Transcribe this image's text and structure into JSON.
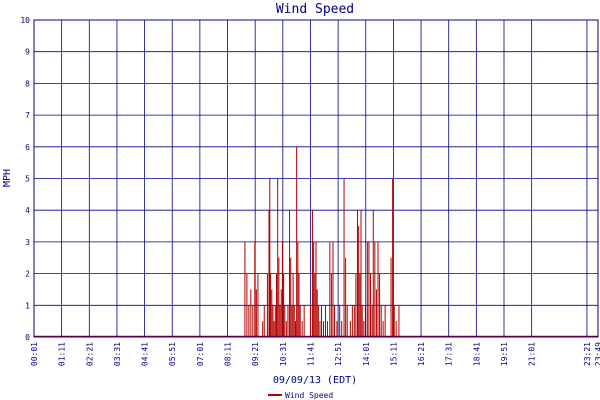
{
  "chart_data": {
    "type": "bar",
    "title": "Wind Speed",
    "xlabel": "09/09/13 (EDT)",
    "ylabel": "MPH",
    "ylim": [
      0,
      10
    ],
    "yticks": [
      "0",
      "1",
      "2",
      "3",
      "4",
      "5",
      "6",
      "7",
      "8",
      "9",
      "10"
    ],
    "xticks": [
      "00:01",
      "01:11",
      "02:21",
      "03:31",
      "04:41",
      "05:51",
      "07:01",
      "08:11",
      "09:21",
      "10:31",
      "11:41",
      "12:51",
      "14:01",
      "15:11",
      "16:21",
      "17:31",
      "18:41",
      "19:51",
      "21:01",
      "23:21",
      "23:49"
    ],
    "grid": true,
    "legend": "bottom-center",
    "series": [
      {
        "name": "Wind Speed",
        "color": "#b00000",
        "points": [
          [
            "08:55",
            3
          ],
          [
            "09:00",
            2
          ],
          [
            "09:05",
            1
          ],
          [
            "09:10",
            1.5
          ],
          [
            "09:15",
            1
          ],
          [
            "09:20",
            3
          ],
          [
            "09:24",
            1.5
          ],
          [
            "09:28",
            2
          ],
          [
            "09:40",
            0.5
          ],
          [
            "09:44",
            1
          ],
          [
            "09:52",
            2
          ],
          [
            "09:56",
            4
          ],
          [
            "09:58",
            5
          ],
          [
            "10:00",
            2
          ],
          [
            "10:03",
            1.5
          ],
          [
            "10:06",
            1
          ],
          [
            "10:09",
            0.5
          ],
          [
            "10:12",
            1
          ],
          [
            "10:15",
            2
          ],
          [
            "10:18",
            5
          ],
          [
            "10:21",
            2.5
          ],
          [
            "10:24",
            1
          ],
          [
            "10:27",
            1.5
          ],
          [
            "10:30",
            3
          ],
          [
            "10:33",
            2
          ],
          [
            "10:36",
            1
          ],
          [
            "10:40",
            0.5
          ],
          [
            "10:44",
            1
          ],
          [
            "10:48",
            4
          ],
          [
            "10:51",
            2.5
          ],
          [
            "10:54",
            1
          ],
          [
            "10:57",
            2
          ],
          [
            "11:00",
            1
          ],
          [
            "11:03",
            0.5
          ],
          [
            "11:06",
            6
          ],
          [
            "11:09",
            3
          ],
          [
            "11:12",
            2
          ],
          [
            "11:15",
            1
          ],
          [
            "11:20",
            0.5
          ],
          [
            "11:25",
            1
          ],
          [
            "11:41",
            1
          ],
          [
            "11:46",
            4
          ],
          [
            "11:49",
            3
          ],
          [
            "11:52",
            2
          ],
          [
            "11:55",
            3
          ],
          [
            "11:58",
            1.5
          ],
          [
            "12:01",
            1
          ],
          [
            "12:05",
            0.5
          ],
          [
            "12:09",
            1
          ],
          [
            "12:14",
            0.5
          ],
          [
            "12:19",
            1
          ],
          [
            "12:24",
            0.5
          ],
          [
            "12:30",
            3
          ],
          [
            "12:34",
            2
          ],
          [
            "12:38",
            3
          ],
          [
            "12:42",
            1
          ],
          [
            "12:48",
            0.5
          ],
          [
            "12:55",
            1
          ],
          [
            "13:00",
            0.5
          ],
          [
            "13:06",
            5
          ],
          [
            "13:10",
            2.5
          ],
          [
            "13:14",
            1
          ],
          [
            "13:22",
            0.5
          ],
          [
            "13:27",
            1
          ],
          [
            "13:32",
            1
          ],
          [
            "13:36",
            2
          ],
          [
            "13:40",
            4
          ],
          [
            "13:43",
            3.5
          ],
          [
            "13:46",
            2
          ],
          [
            "13:49",
            4
          ],
          [
            "13:52",
            1
          ],
          [
            "13:56",
            0.5
          ],
          [
            "14:00",
            1
          ],
          [
            "14:05",
            3
          ],
          [
            "14:09",
            3
          ],
          [
            "14:13",
            2
          ],
          [
            "14:17",
            1
          ],
          [
            "14:20",
            4
          ],
          [
            "14:24",
            3
          ],
          [
            "14:28",
            1.5
          ],
          [
            "14:32",
            3
          ],
          [
            "14:36",
            2
          ],
          [
            "14:40",
            1
          ],
          [
            "14:45",
            0.5
          ],
          [
            "14:50",
            1
          ],
          [
            "15:05",
            2.5
          ],
          [
            "15:09",
            5
          ],
          [
            "15:13",
            1
          ],
          [
            "15:18",
            0.5
          ],
          [
            "15:25",
            1
          ]
        ]
      }
    ]
  }
}
